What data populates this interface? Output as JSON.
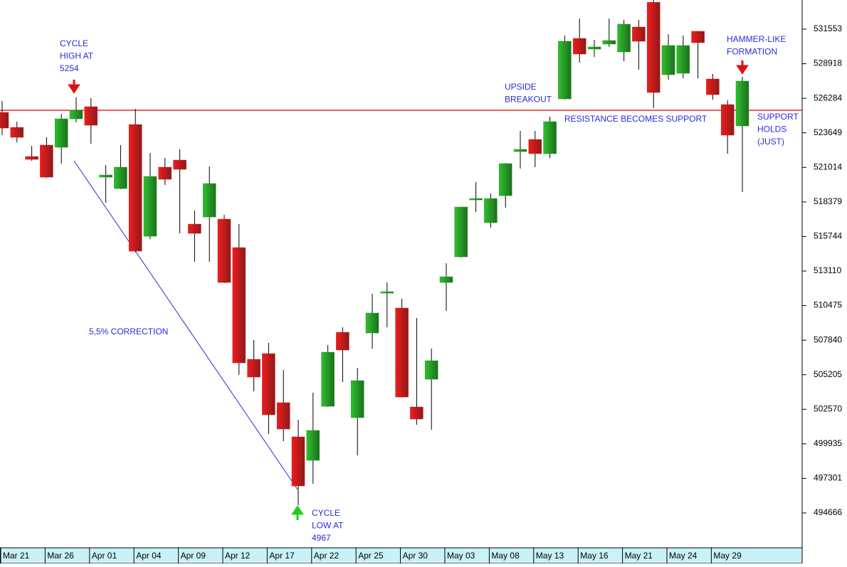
{
  "chart_data": {
    "type": "candlestick",
    "categories": [
      "Mar 21",
      null,
      null,
      "Mar 26",
      null,
      null,
      "Apr 01",
      null,
      null,
      "Apr 04",
      null,
      null,
      "Apr 09",
      null,
      null,
      "Apr 12",
      null,
      null,
      "Apr 17",
      null,
      null,
      "Apr 22",
      null,
      null,
      "Apr 25",
      null,
      null,
      "Apr 30",
      null,
      null,
      "May 03",
      null,
      null,
      "May 08",
      null,
      null,
      "May 13",
      null,
      null,
      "May 16",
      null,
      null,
      "May 21",
      null,
      null,
      "May 24",
      null,
      null,
      "May 29",
      null,
      null
    ],
    "open": [
      525206,
      524066,
      521842,
      522710,
      522547,
      524717,
      525640,
      520269,
      519401,
      524283,
      515766,
      521029,
      521571,
      516688,
      517231,
      517068,
      514898,
      506381,
      506815,
      503072,
      500468,
      498678,
      502800,
      508442,
      501932,
      508388,
      511426,
      510287,
      502746,
      504862,
      512240,
      514193,
      518533,
      516797,
      518858,
      522222,
      523144,
      522059,
      526236,
      530848,
      530034,
      530414,
      529817,
      531716,
      533600,
      528081,
      528190,
      531390,
      527755,
      525802,
      524174
    ],
    "high": [
      526074,
      524500,
      522656,
      523306,
      525097,
      526345,
      526291,
      521191,
      522710,
      525477,
      522113,
      521734,
      522385,
      517719,
      521083,
      517394,
      516688,
      507845,
      507629,
      505567,
      501770,
      503831,
      507465,
      508822,
      505730,
      511372,
      512240,
      510992,
      509527,
      507194,
      513705,
      517990,
      519889,
      519021,
      521354,
      523795,
      523795,
      524880,
      531065,
      532366,
      530739,
      532366,
      532258,
      532258,
      534200,
      531173,
      531065,
      531390,
      528135,
      526128,
      527918
    ],
    "low": [
      523470,
      522927,
      521517,
      520215,
      521300,
      524446,
      522819,
      518316,
      519347,
      514518,
      515549,
      519672,
      515983,
      513813,
      513813,
      512186,
      505187,
      503940,
      500685,
      500142,
      495260,
      496887,
      502746,
      504644,
      499057,
      507194,
      508822,
      503452,
      501390,
      501010,
      510070,
      514139,
      517611,
      516417,
      517936,
      520920,
      521029,
      521734,
      526182,
      529003,
      529437,
      530197,
      529112,
      528461,
      525531,
      527701,
      527810,
      527810,
      526182,
      522059,
      519130
    ],
    "close": [
      524011,
      523306,
      521625,
      520269,
      524717,
      525368,
      524229,
      520432,
      521029,
      514627,
      520323,
      520106,
      520866,
      515983,
      519781,
      512240,
      506110,
      505025,
      502149,
      501064,
      496724,
      500956,
      506923,
      507086,
      504753,
      509907,
      511535,
      503506,
      501824,
      506272,
      512674,
      517990,
      518641,
      518641,
      521300,
      522385,
      522059,
      524500,
      530631,
      529654,
      530197,
      530686,
      531933,
      530631,
      526725,
      530305,
      530305,
      530522,
      526562,
      523470,
      527593
    ],
    "up_color": "#1f9a1f",
    "down_color": "#d81a1a",
    "resistance": 525368,
    "resistance_color": "#dd0000",
    "ylim": [
      492008,
      533777
    ],
    "yticks": [
      531553,
      528918,
      526284,
      523649,
      521014,
      518379,
      515744,
      513110,
      510475,
      507840,
      505205,
      502570,
      499935,
      497301,
      494666
    ],
    "annotations": [
      [
        "CYCLE",
        "HIGH AT",
        "5254"
      ],
      [
        "5,5% CORRECTION"
      ],
      [
        "CYCLE",
        "LOW AT",
        "4967"
      ],
      [
        "UPSIDE",
        "BREAKOUT"
      ],
      [
        "RESISTANCE BECOMES SUPPORT"
      ],
      [
        "HAMMER-LIKE",
        "FORMATION"
      ],
      [
        "SUPPORT",
        "HOLDS",
        "(JUST)"
      ]
    ],
    "annotation_color": "#2a2ae0"
  }
}
